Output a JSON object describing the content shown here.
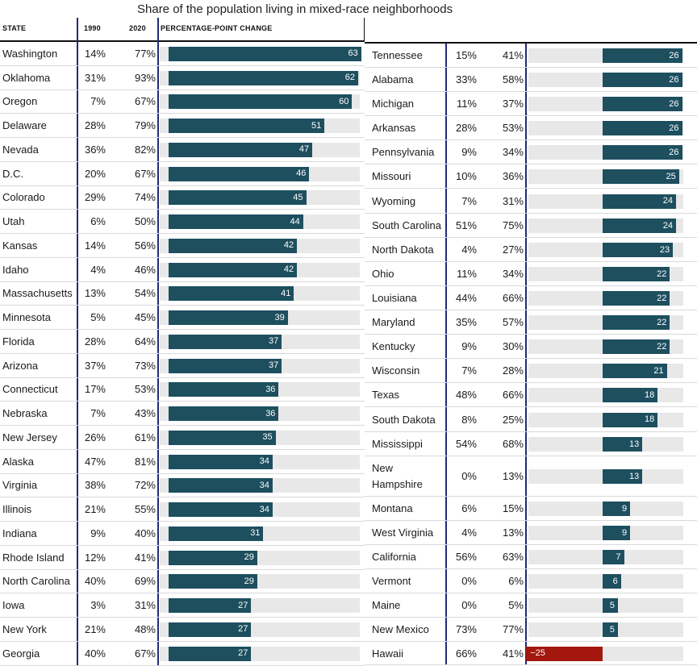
{
  "chart_data": {
    "type": "table",
    "title": "Share of the population living in mixed-race neighborhoods",
    "columns": [
      "STATE",
      "1990",
      "2020",
      "PERCENTAGE-POINT CHANGE"
    ],
    "rows": [
      {
        "state": "Washington",
        "y1990": "14%",
        "y2020": "77%",
        "change": 63
      },
      {
        "state": "Oklahoma",
        "y1990": "31%",
        "y2020": "93%",
        "change": 62
      },
      {
        "state": "Oregon",
        "y1990": "7%",
        "y2020": "67%",
        "change": 60
      },
      {
        "state": "Delaware",
        "y1990": "28%",
        "y2020": "79%",
        "change": 51
      },
      {
        "state": "Nevada",
        "y1990": "36%",
        "y2020": "82%",
        "change": 47
      },
      {
        "state": "D.C.",
        "y1990": "20%",
        "y2020": "67%",
        "change": 46
      },
      {
        "state": "Colorado",
        "y1990": "29%",
        "y2020": "74%",
        "change": 45
      },
      {
        "state": "Utah",
        "y1990": "6%",
        "y2020": "50%",
        "change": 44
      },
      {
        "state": "Kansas",
        "y1990": "14%",
        "y2020": "56%",
        "change": 42
      },
      {
        "state": "Idaho",
        "y1990": "4%",
        "y2020": "46%",
        "change": 42
      },
      {
        "state": "Massachusetts",
        "y1990": "13%",
        "y2020": "54%",
        "change": 41
      },
      {
        "state": "Minnesota",
        "y1990": "5%",
        "y2020": "45%",
        "change": 39
      },
      {
        "state": "Florida",
        "y1990": "28%",
        "y2020": "64%",
        "change": 37
      },
      {
        "state": "Arizona",
        "y1990": "37%",
        "y2020": "73%",
        "change": 37
      },
      {
        "state": "Connecticut",
        "y1990": "17%",
        "y2020": "53%",
        "change": 36
      },
      {
        "state": "Nebraska",
        "y1990": "7%",
        "y2020": "43%",
        "change": 36
      },
      {
        "state": "New Jersey",
        "y1990": "26%",
        "y2020": "61%",
        "change": 35
      },
      {
        "state": "Alaska",
        "y1990": "47%",
        "y2020": "81%",
        "change": 34
      },
      {
        "state": "Virginia",
        "y1990": "38%",
        "y2020": "72%",
        "change": 34
      },
      {
        "state": "Illinois",
        "y1990": "21%",
        "y2020": "55%",
        "change": 34
      },
      {
        "state": "Indiana",
        "y1990": "9%",
        "y2020": "40%",
        "change": 31
      },
      {
        "state": "Rhode Island",
        "y1990": "12%",
        "y2020": "41%",
        "change": 29
      },
      {
        "state": "North Carolina",
        "y1990": "40%",
        "y2020": "69%",
        "change": 29
      },
      {
        "state": "Iowa",
        "y1990": "3%",
        "y2020": "31%",
        "change": 27
      },
      {
        "state": "New York",
        "y1990": "21%",
        "y2020": "48%",
        "change": 27
      },
      {
        "state": "Georgia",
        "y1990": "40%",
        "y2020": "67%",
        "change": 27
      },
      {
        "state": "Tennessee",
        "y1990": "15%",
        "y2020": "41%",
        "change": 26
      },
      {
        "state": "Alabama",
        "y1990": "33%",
        "y2020": "58%",
        "change": 26
      },
      {
        "state": "Michigan",
        "y1990": "11%",
        "y2020": "37%",
        "change": 26
      },
      {
        "state": "Arkansas",
        "y1990": "28%",
        "y2020": "53%",
        "change": 26
      },
      {
        "state": "Pennsylvania",
        "y1990": "9%",
        "y2020": "34%",
        "change": 26
      },
      {
        "state": "Missouri",
        "y1990": "10%",
        "y2020": "36%",
        "change": 25
      },
      {
        "state": "Wyoming",
        "y1990": "7%",
        "y2020": "31%",
        "change": 24
      },
      {
        "state": "South Carolina",
        "y1990": "51%",
        "y2020": "75%",
        "change": 24
      },
      {
        "state": "North Dakota",
        "y1990": "4%",
        "y2020": "27%",
        "change": 23
      },
      {
        "state": "Ohio",
        "y1990": "11%",
        "y2020": "34%",
        "change": 22
      },
      {
        "state": "Louisiana",
        "y1990": "44%",
        "y2020": "66%",
        "change": 22
      },
      {
        "state": "Maryland",
        "y1990": "35%",
        "y2020": "57%",
        "change": 22
      },
      {
        "state": "Kentucky",
        "y1990": "9%",
        "y2020": "30%",
        "change": 22
      },
      {
        "state": "Wisconsin",
        "y1990": "7%",
        "y2020": "28%",
        "change": 21
      },
      {
        "state": "Texas",
        "y1990": "48%",
        "y2020": "66%",
        "change": 18
      },
      {
        "state": "South Dakota",
        "y1990": "8%",
        "y2020": "25%",
        "change": 18
      },
      {
        "state": "Mississippi",
        "y1990": "54%",
        "y2020": "68%",
        "change": 13
      },
      {
        "state": "New Hampshire",
        "y1990": "0%",
        "y2020": "13%",
        "change": 13
      },
      {
        "state": "Montana",
        "y1990": "6%",
        "y2020": "15%",
        "change": 9
      },
      {
        "state": "West Virginia",
        "y1990": "4%",
        "y2020": "13%",
        "change": 9
      },
      {
        "state": "California",
        "y1990": "56%",
        "y2020": "63%",
        "change": 7
      },
      {
        "state": "Vermont",
        "y1990": "0%",
        "y2020": "6%",
        "change": 6
      },
      {
        "state": "Maine",
        "y1990": "0%",
        "y2020": "5%",
        "change": 5
      },
      {
        "state": "New Mexico",
        "y1990": "73%",
        "y2020": "77%",
        "change": 5
      },
      {
        "state": "Hawaii",
        "y1990": "66%",
        "y2020": "41%",
        "change": -25,
        "change_label": "−25"
      }
    ],
    "xlim": [
      -25,
      63
    ],
    "colors": {
      "positive": "#1d4f5f",
      "negative": "#a3170e",
      "track": "#e8e8e8",
      "divider": "#22297a"
    }
  }
}
